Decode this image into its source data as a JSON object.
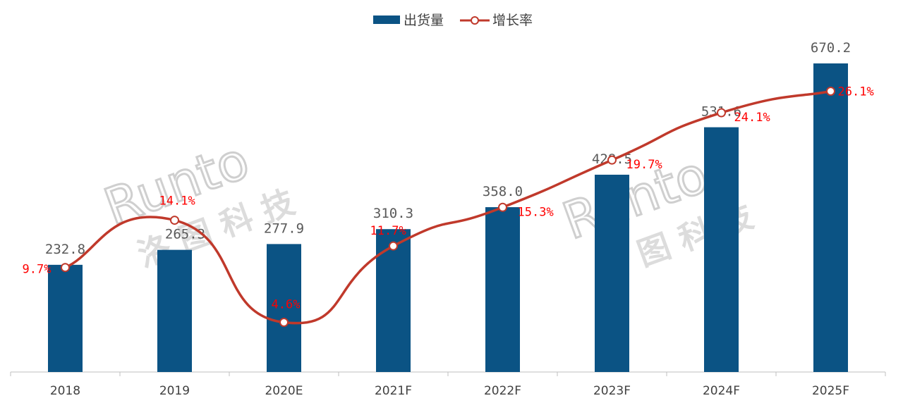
{
  "chart_data": {
    "type": "bar",
    "categories": [
      "2018",
      "2019",
      "2020E",
      "2021F",
      "2022F",
      "2023F",
      "2024F",
      "2025F"
    ],
    "series": [
      {
        "name": "出货量",
        "kind": "bar",
        "color": "#0b5384",
        "values": [
          232.8,
          265.3,
          277.9,
          310.3,
          358.0,
          428.5,
          531.6,
          670.2
        ],
        "labels": [
          "232.8",
          "265.3",
          "277.9",
          "310.3",
          "358.0",
          "428.5",
          "531.6",
          "670.2"
        ]
      },
      {
        "name": "增长率",
        "kind": "line",
        "color": "#c0392b",
        "values": [
          9.7,
          14.1,
          4.6,
          11.7,
          15.3,
          19.7,
          24.1,
          26.1
        ],
        "labels": [
          "9.7%",
          "14.1%",
          "4.6%",
          "11.7%",
          "15.3%",
          "19.7%",
          "24.1%",
          "26.1%"
        ]
      }
    ],
    "ylim": [
      0,
      800
    ],
    "y2lim": [
      -5,
      30
    ],
    "grid": false,
    "legend": "top-center"
  },
  "watermark": {
    "latin": "Runto",
    "cjk": "洛 图 科 技"
  }
}
